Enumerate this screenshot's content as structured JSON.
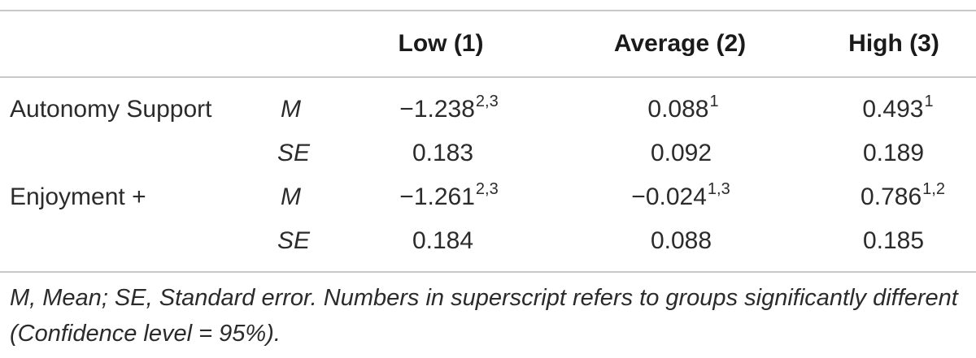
{
  "headers": [
    "Low (1)",
    "Average (2)",
    "High (3)"
  ],
  "rows": [
    {
      "label": "Autonomy Support",
      "stat": "M",
      "values": [
        {
          "value": "−1.238",
          "sup": "2,3"
        },
        {
          "value": "0.088",
          "sup": "1"
        },
        {
          "value": "0.493",
          "sup": "1"
        }
      ]
    },
    {
      "label": "",
      "stat": "SE",
      "values": [
        {
          "value": "0.183",
          "sup": ""
        },
        {
          "value": "0.092",
          "sup": ""
        },
        {
          "value": "0.189",
          "sup": ""
        }
      ]
    },
    {
      "label": "Enjoyment +",
      "stat": "M",
      "values": [
        {
          "value": "−1.261",
          "sup": "2,3"
        },
        {
          "value": "−0.024",
          "sup": "1,3"
        },
        {
          "value": "0.786",
          "sup": "1,2"
        }
      ]
    },
    {
      "label": "",
      "stat": "SE",
      "values": [
        {
          "value": "0.184",
          "sup": ""
        },
        {
          "value": "0.088",
          "sup": ""
        },
        {
          "value": "0.185",
          "sup": ""
        }
      ]
    }
  ],
  "footnote": "M, Mean; SE, Standard error. Numbers in superscript refers to groups significantly different (Confidence level = 95%)."
}
